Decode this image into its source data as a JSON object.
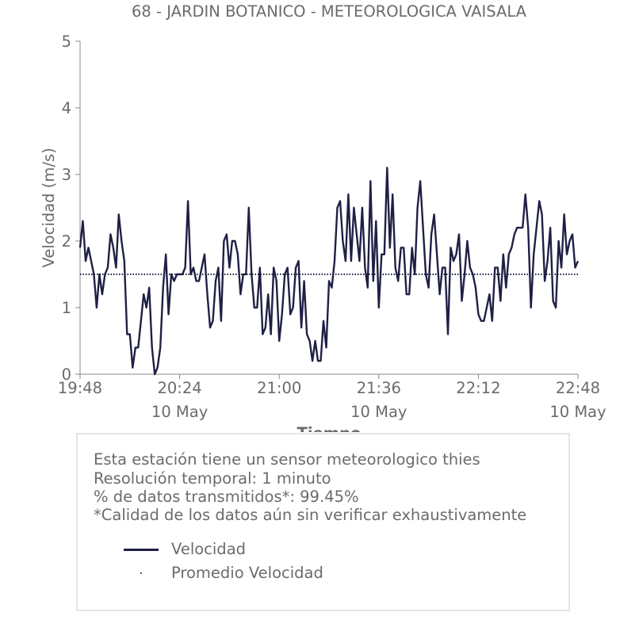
{
  "chart_data": {
    "type": "line",
    "title": "68 - JARDIN BOTANICO - METEOROLOGICA VAISALA",
    "xlabel": "Tiempo",
    "ylabel": "Velocidad (m/s)",
    "ylim": [
      0,
      5
    ],
    "yticks": [
      "0",
      "1",
      "2",
      "3",
      "4",
      "5"
    ],
    "xlim": [
      "19:48",
      "22:48"
    ],
    "xticks": [
      {
        "time": "19:48",
        "date": ""
      },
      {
        "time": "20:24",
        "date": "10 May"
      },
      {
        "time": "21:00",
        "date": ""
      },
      {
        "time": "21:36",
        "date": "10 May"
      },
      {
        "time": "22:12",
        "date": ""
      },
      {
        "time": "22:48",
        "date": "10 May"
      }
    ],
    "grid": false,
    "series": [
      {
        "name": "Velocidad",
        "color": "#1f2045",
        "style": "solid",
        "start_time": "19:48",
        "interval_minutes": 1,
        "values": [
          1.9,
          2.3,
          1.7,
          1.9,
          1.7,
          1.5,
          1.0,
          1.5,
          1.2,
          1.5,
          1.6,
          2.1,
          1.9,
          1.6,
          2.4,
          2.0,
          1.7,
          0.6,
          0.6,
          0.1,
          0.4,
          0.4,
          0.8,
          1.2,
          1.0,
          1.3,
          0.4,
          0.0,
          0.1,
          0.4,
          1.3,
          1.8,
          0.9,
          1.5,
          1.4,
          1.5,
          1.5,
          1.5,
          1.6,
          2.6,
          1.5,
          1.6,
          1.4,
          1.4,
          1.6,
          1.8,
          1.2,
          0.7,
          0.8,
          1.4,
          1.6,
          0.8,
          2.0,
          2.1,
          1.6,
          2.0,
          2.0,
          1.8,
          1.2,
          1.5,
          1.5,
          2.5,
          1.5,
          1.0,
          1.0,
          1.6,
          0.6,
          0.7,
          1.2,
          0.6,
          1.6,
          1.4,
          0.5,
          0.9,
          1.5,
          1.6,
          0.9,
          1.0,
          1.6,
          1.7,
          0.7,
          1.4,
          0.6,
          0.5,
          0.2,
          0.5,
          0.2,
          0.2,
          0.8,
          0.4,
          1.4,
          1.3,
          1.7,
          2.5,
          2.6,
          2.0,
          1.7,
          2.7,
          1.7,
          2.5,
          2.1,
          1.7,
          2.5,
          1.6,
          1.3,
          2.9,
          1.4,
          2.3,
          1.0,
          1.8,
          1.8,
          3.1,
          1.9,
          2.7,
          1.6,
          1.4,
          1.9,
          1.9,
          1.2,
          1.2,
          1.9,
          1.5,
          2.5,
          2.9,
          2.2,
          1.5,
          1.3,
          2.1,
          2.4,
          1.8,
          1.2,
          1.6,
          1.6,
          0.6,
          1.9,
          1.7,
          1.8,
          2.1,
          1.1,
          1.5,
          2.0,
          1.6,
          1.5,
          1.3,
          0.9,
          0.8,
          0.8,
          1.0,
          1.2,
          0.8,
          1.6,
          1.6,
          1.1,
          1.8,
          1.3,
          1.8,
          1.9,
          2.1,
          2.2,
          2.2,
          2.2,
          2.7,
          2.2,
          1.0,
          1.8,
          2.2,
          2.6,
          2.4,
          1.4,
          1.7,
          2.2,
          1.1,
          1.0,
          2.0,
          1.6,
          2.4,
          1.8,
          2.0,
          2.1,
          1.6,
          1.7
        ]
      },
      {
        "name": "Promedio Velocidad",
        "color": "#1f2045",
        "style": "dotted",
        "constant": 1.5
      }
    ],
    "legend_position": "inside-info-box"
  },
  "info_box": {
    "line1": "Esta estación tiene un sensor meteorologico thies",
    "line2": "Resolución temporal: 1 minuto",
    "line3": "% de datos transmitidos*: 99.45%",
    "line4": "*Calidad de los datos aún sin verificar exhaustivamente"
  },
  "legend": {
    "item1": "Velocidad",
    "item2": "Promedio Velocidad"
  }
}
